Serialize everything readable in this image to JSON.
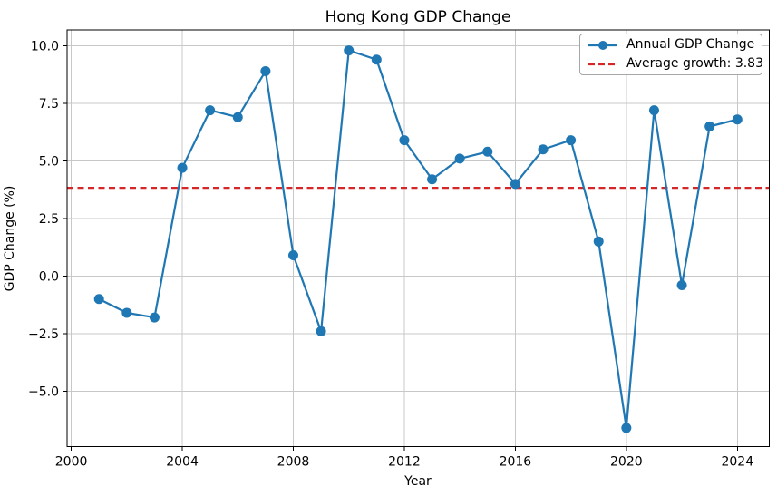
{
  "title": "Hong Kong GDP Change",
  "xlabel": "Year",
  "ylabel": "GDP Change (%)",
  "legend": {
    "annual_label": "Annual GDP Change",
    "average_label": "Average growth: 3.83"
  },
  "colors": {
    "series": "#1f77b4",
    "average": "#d62728",
    "grid": "#c8c8c8",
    "spine": "#000000",
    "background": "#ffffff"
  },
  "chart_data": {
    "type": "line",
    "title": "Hong Kong GDP Change",
    "xlabel": "Year",
    "ylabel": "GDP Change (%)",
    "x": [
      2001,
      2002,
      2003,
      2004,
      2005,
      2006,
      2007,
      2008,
      2009,
      2010,
      2011,
      2012,
      2013,
      2014,
      2015,
      2016,
      2017,
      2018,
      2019,
      2020,
      2021,
      2022,
      2023,
      2024
    ],
    "series": [
      {
        "name": "Annual GDP Change",
        "color": "#1f77b4",
        "marker": "o",
        "values": [
          -1.0,
          -1.6,
          -1.8,
          4.7,
          7.2,
          6.9,
          8.9,
          0.9,
          -2.4,
          9.8,
          9.4,
          5.9,
          4.2,
          5.1,
          5.4,
          4.0,
          5.5,
          5.9,
          1.5,
          -6.6,
          7.2,
          -0.4,
          6.5,
          6.8
        ]
      }
    ],
    "average_line": {
      "value": 3.83,
      "label": "Average growth: 3.83",
      "style": "dashed",
      "color": "#d62728"
    },
    "xticks": [
      2000,
      2004,
      2008,
      2012,
      2016,
      2020,
      2024
    ],
    "yticks": [
      10.0,
      7.5,
      5.0,
      2.5,
      0.0,
      -2.5,
      -5.0
    ],
    "xlim": [
      1999.85,
      2025.15
    ],
    "ylim": [
      -7.41,
      10.69
    ],
    "grid": true,
    "legend_position": "upper right"
  }
}
